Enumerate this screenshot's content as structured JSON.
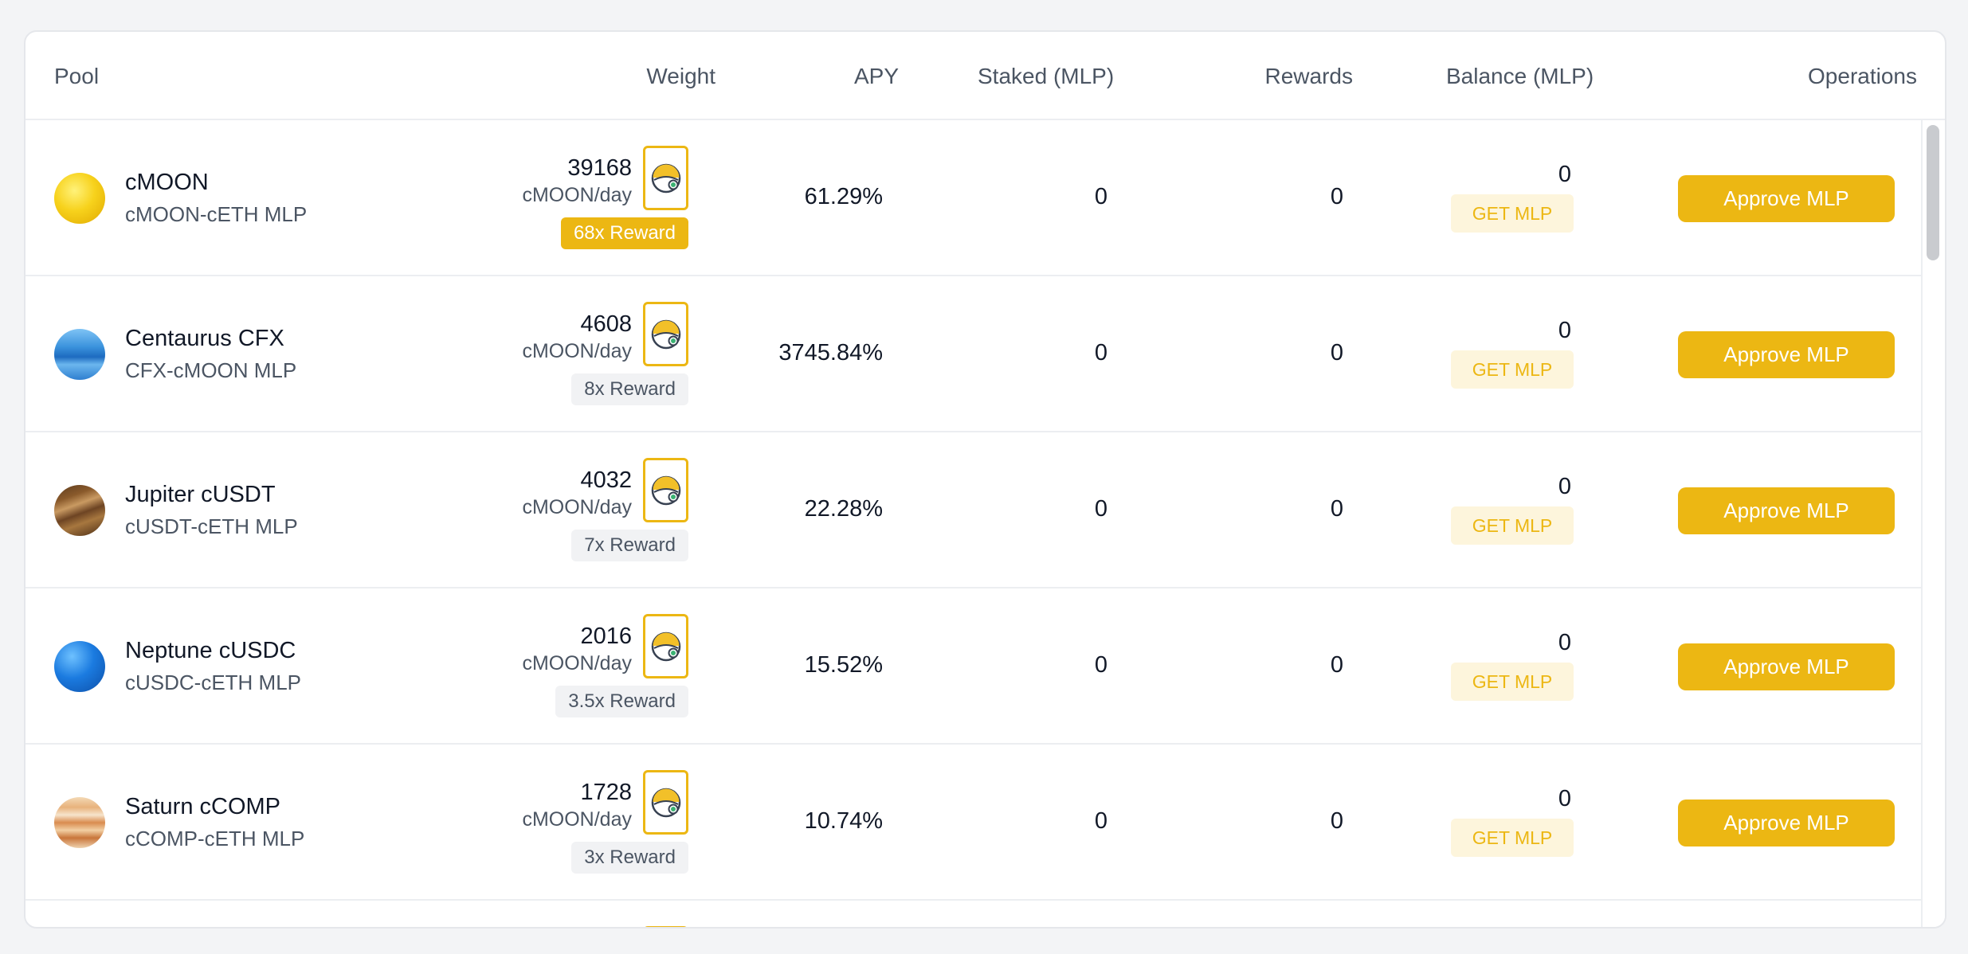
{
  "table": {
    "headers": {
      "pool": "Pool",
      "weight": "Weight",
      "apy": "APY",
      "staked": "Staked (MLP)",
      "rewards": "Rewards",
      "balance": "Balance (MLP)",
      "operations": "Operations"
    },
    "rows": [
      {
        "name": "cMOON",
        "pair": "cMOON-cETH MLP",
        "weight": "39168",
        "unit": "cMOON/day",
        "badge": "68x Reward",
        "badge_highlight": true,
        "apy": "61.29%",
        "staked": "0",
        "rewards": "0",
        "balance": "0",
        "get_label": "GET MLP",
        "action_label": "Approve MLP",
        "planet": "moon-icon"
      },
      {
        "name": "Centaurus CFX",
        "pair": "CFX-cMOON MLP",
        "weight": "4608",
        "unit": "cMOON/day",
        "badge": "8x Reward",
        "badge_highlight": false,
        "apy": "3745.84%",
        "staked": "0",
        "rewards": "0",
        "balance": "0",
        "get_label": "GET MLP",
        "action_label": "Approve MLP",
        "planet": "centaurus-icon"
      },
      {
        "name": "Jupiter cUSDT",
        "pair": "cUSDT-cETH MLP",
        "weight": "4032",
        "unit": "cMOON/day",
        "badge": "7x Reward",
        "badge_highlight": false,
        "apy": "22.28%",
        "staked": "0",
        "rewards": "0",
        "balance": "0",
        "get_label": "GET MLP",
        "action_label": "Approve MLP",
        "planet": "jupiter-icon"
      },
      {
        "name": "Neptune cUSDC",
        "pair": "cUSDC-cETH MLP",
        "weight": "2016",
        "unit": "cMOON/day",
        "badge": "3.5x Reward",
        "badge_highlight": false,
        "apy": "15.52%",
        "staked": "0",
        "rewards": "0",
        "balance": "0",
        "get_label": "GET MLP",
        "action_label": "Approve MLP",
        "planet": "neptune-icon"
      },
      {
        "name": "Saturn cCOMP",
        "pair": "cCOMP-cETH MLP",
        "weight": "1728",
        "unit": "cMOON/day",
        "badge": "3x Reward",
        "badge_highlight": false,
        "apy": "10.74%",
        "staked": "0",
        "rewards": "0",
        "balance": "0",
        "get_label": "GET MLP",
        "action_label": "Approve MLP",
        "planet": "saturn-icon"
      }
    ]
  },
  "colors": {
    "accent": "#ecb713",
    "accent_light": "#fdf5dc",
    "border": "#e5e7eb"
  }
}
